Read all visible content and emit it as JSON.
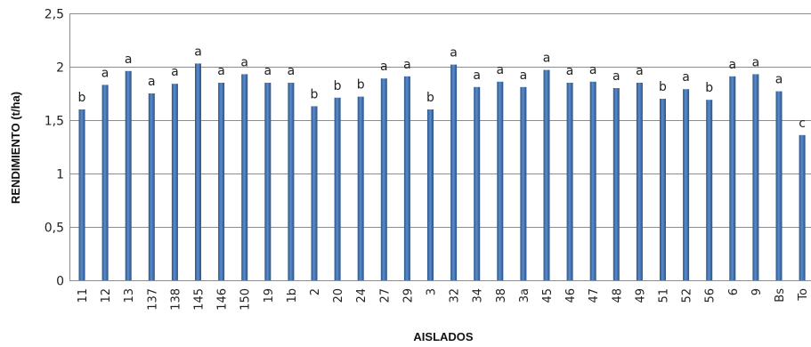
{
  "chart_data": {
    "type": "bar",
    "xlabel": "AISLADOS",
    "ylabel": "RENDIMIENTO  (t/ha)",
    "ylim": [
      0,
      2.5
    ],
    "yticks": [
      "0",
      "0,5",
      "1",
      "1,5",
      "2",
      "2,5"
    ],
    "grid": true,
    "categories": [
      "11",
      "12",
      "13",
      "137",
      "138",
      "145",
      "146",
      "150",
      "19",
      "1b",
      "2",
      "20",
      "24",
      "27",
      "29",
      "3",
      "32",
      "34",
      "38",
      "3a",
      "45",
      "46",
      "47",
      "48",
      "49",
      "51",
      "52",
      "56",
      "6",
      "9",
      "Bs",
      "To"
    ],
    "values": [
      1.6,
      1.83,
      1.96,
      1.75,
      1.84,
      2.03,
      1.85,
      1.93,
      1.85,
      1.85,
      1.63,
      1.71,
      1.72,
      1.89,
      1.91,
      1.6,
      2.02,
      1.81,
      1.86,
      1.81,
      1.97,
      1.85,
      1.86,
      1.8,
      1.85,
      1.7,
      1.79,
      1.69,
      1.91,
      1.93,
      1.77,
      1.36
    ],
    "labels": [
      "b",
      "a",
      "a",
      "a",
      "a",
      "a",
      "a",
      "a",
      "a",
      "a",
      "b",
      "b",
      "b",
      "a",
      "a",
      "b",
      "a",
      "a",
      "a",
      "a",
      "a",
      "a",
      "a",
      "a",
      "a",
      "b",
      "a",
      "b",
      "a",
      "a",
      "a",
      "c"
    ],
    "bar_color": "#3f6ea8"
  }
}
